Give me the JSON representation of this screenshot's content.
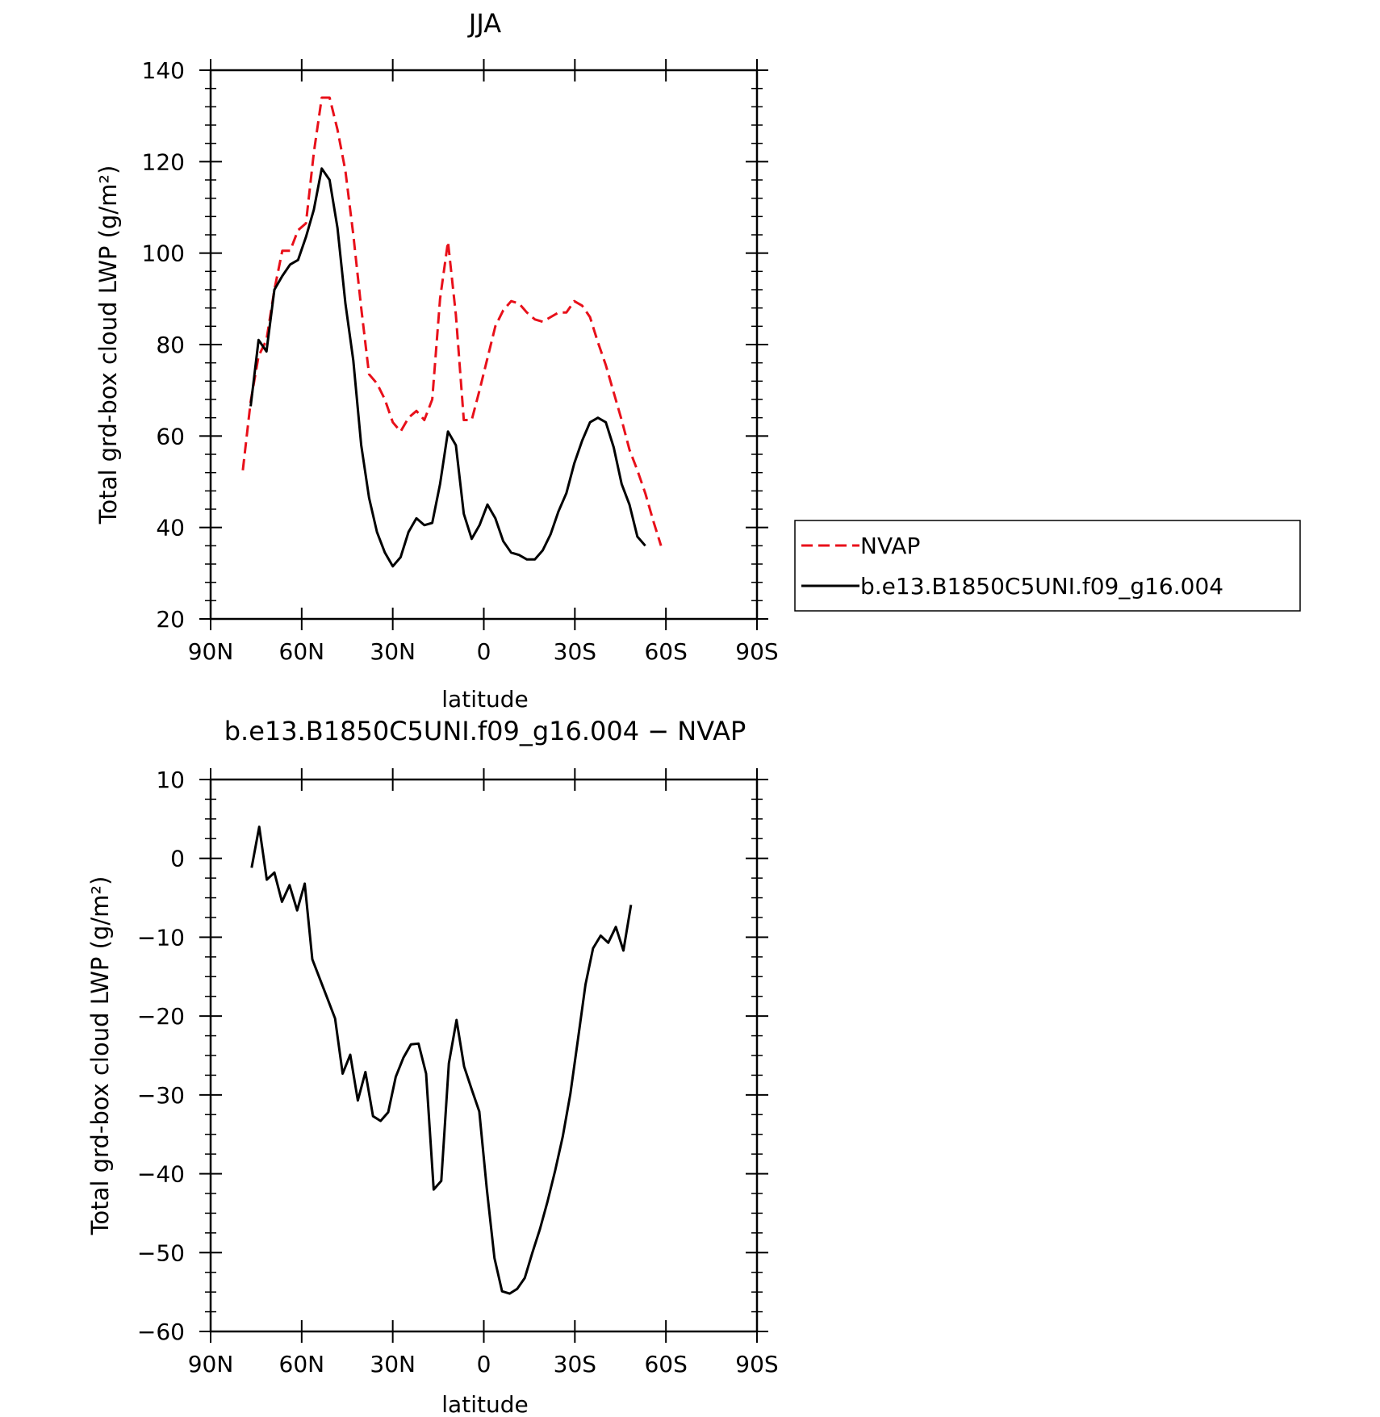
{
  "chart_data": [
    {
      "type": "line",
      "title": "JJA",
      "xlabel": "latitude",
      "ylabel": "Total grd-box cloud LWP (g/m²)",
      "xlim": [
        -90,
        90
      ],
      "ylim": [
        20,
        140
      ],
      "x_ticks": [
        -90,
        -60,
        -30,
        0,
        30,
        60,
        90
      ],
      "x_tick_labels": [
        "90N",
        "60N",
        "30N",
        "0",
        "30S",
        "60S",
        "90S"
      ],
      "y_ticks": [
        20,
        40,
        60,
        80,
        100,
        120,
        140
      ],
      "y_tick_labels": [
        "20",
        "40",
        "60",
        "80",
        "100",
        "120",
        "140"
      ],
      "grid": false,
      "legend_position": "right",
      "series": [
        {
          "name": "NVAP",
          "color": "#e8101a",
          "dash": "dashed",
          "x": [
            -79.4,
            -76.8,
            -74.2,
            -71.6,
            -69.0,
            -66.4,
            -63.8,
            -61.2,
            -58.6,
            -56.0,
            -53.4,
            -50.8,
            -48.2,
            -45.6,
            -43.0,
            -40.4,
            -37.8,
            -35.2,
            -32.6,
            -30.0,
            -27.4,
            -24.8,
            -22.2,
            -19.6,
            -17.0,
            -14.4,
            -11.8,
            -9.2,
            -6.6,
            -4.0,
            -1.4,
            1.2,
            3.8,
            6.4,
            9.0,
            11.6,
            14.2,
            16.8,
            19.4,
            22.0,
            24.6,
            27.2,
            29.8,
            32.4,
            35.0,
            37.6,
            40.2,
            42.8,
            45.4,
            48.0,
            50.6,
            53.2,
            55.8,
            58.4,
            61.0,
            63.6,
            66.2
          ],
          "values": [
            52.5,
            67.5,
            77.5,
            81.0,
            92.0,
            100.5,
            100.5,
            105.0,
            106.5,
            122.0,
            134.0,
            134.0,
            127.0,
            118.0,
            104.0,
            88.0,
            73.5,
            71.5,
            68.0,
            63.0,
            61.0,
            64.0,
            65.5,
            63.5,
            68.0,
            90.0,
            102.5,
            86.5,
            63.5,
            63.5,
            70.0,
            77.0,
            84.0,
            87.5,
            89.5,
            89.0,
            87.0,
            85.5,
            85.0,
            86.0,
            87.0,
            87.0,
            89.5,
            88.5,
            86.0,
            80.5,
            75.5,
            69.5,
            63.5,
            57.0,
            52.5,
            47.5,
            41.5,
            36.0,
            null,
            null,
            null
          ]
        },
        {
          "name": "b.e13.B1850C5UNI.f09_g16.004",
          "color": "#000000",
          "dash": "solid",
          "x": [
            -76.8,
            -74.2,
            -71.6,
            -69.0,
            -66.4,
            -63.8,
            -61.2,
            -58.6,
            -56.0,
            -53.4,
            -50.8,
            -48.2,
            -45.6,
            -43.0,
            -40.4,
            -37.8,
            -35.2,
            -32.6,
            -30.0,
            -27.4,
            -24.8,
            -22.2,
            -19.6,
            -17.0,
            -14.4,
            -11.8,
            -9.2,
            -6.6,
            -4.0,
            -1.4,
            1.2,
            3.8,
            6.4,
            9.0,
            11.6,
            14.2,
            16.8,
            19.4,
            22.0,
            24.6,
            27.2,
            29.8,
            32.4,
            35.0,
            37.6,
            40.2,
            42.8,
            45.4,
            48.0,
            50.6,
            53.2,
            55.8,
            58.4,
            61.0,
            63.6
          ],
          "values": [
            66.5,
            81.0,
            78.5,
            92.0,
            95.0,
            97.5,
            98.5,
            103.5,
            109.5,
            118.5,
            116.0,
            105.5,
            89.0,
            76.5,
            58.0,
            46.5,
            39.0,
            34.5,
            31.5,
            33.5,
            39.0,
            42.0,
            40.5,
            41.0,
            49.5,
            61.0,
            58.0,
            43.0,
            37.5,
            40.5,
            45.0,
            42.0,
            37.0,
            34.5,
            34.0,
            33.0,
            33.0,
            35.0,
            38.5,
            43.5,
            47.5,
            54.0,
            59.0,
            63.0,
            64.0,
            63.0,
            57.5,
            49.5,
            45.0,
            38.0,
            36.0,
            null,
            null,
            null,
            null
          ]
        }
      ]
    },
    {
      "type": "line",
      "title": "b.e13.B1850C5UNI.f09_g16.004 − NVAP",
      "xlabel": "latitude",
      "ylabel": "Total grd-box cloud LWP (g/m²)",
      "xlim": [
        -90,
        90
      ],
      "ylim": [
        -60,
        10
      ],
      "x_ticks": [
        -90,
        -60,
        -30,
        0,
        30,
        60,
        90
      ],
      "x_tick_labels": [
        "90N",
        "60N",
        "30N",
        "0",
        "30S",
        "60S",
        "90S"
      ],
      "y_ticks": [
        -60,
        -50,
        -40,
        -30,
        -20,
        -10,
        0,
        10
      ],
      "y_tick_labels": [
        "−60",
        "−50",
        "−40",
        "−30",
        "−20",
        "−10",
        "0",
        "10"
      ],
      "grid": false,
      "series": [
        {
          "color": "#000000",
          "dash": "solid",
          "x": [
            -76.5,
            -74.0,
            -71.5,
            -69.0,
            -66.5,
            -64.0,
            -61.5,
            -59.0,
            -56.5,
            -54.0,
            -51.5,
            -49.0,
            -46.5,
            -44.0,
            -41.5,
            -39.0,
            -36.5,
            -34.0,
            -31.5,
            -29.0,
            -26.5,
            -24.0,
            -21.5,
            -19.0,
            -16.5,
            -14.0,
            -11.5,
            -9.0,
            -6.5,
            -4.0,
            -1.5,
            1.0,
            3.5,
            6.0,
            8.5,
            11.0,
            13.5,
            16.0,
            18.5,
            21.0,
            23.5,
            26.0,
            28.5,
            31.0,
            33.5,
            36.0,
            38.5,
            41.0,
            43.5,
            46.0,
            48.5,
            51.0,
            53.5,
            56.0,
            58.5,
            61.0,
            63.5
          ],
          "values": [
            -1.2,
            4.0,
            -2.7,
            -1.8,
            -5.5,
            -3.4,
            -6.6,
            -3.2,
            -12.8,
            -15.3,
            -17.8,
            -20.3,
            -27.3,
            -24.9,
            -30.7,
            -27.1,
            -32.7,
            -33.3,
            -32.2,
            -27.7,
            -25.3,
            -23.6,
            -23.5,
            -27.3,
            -42.0,
            -40.9,
            -26.0,
            -20.5,
            -26.4,
            -29.3,
            -32.1,
            -42.0,
            -50.7,
            -54.9,
            -55.2,
            -54.6,
            -53.2,
            -50.0,
            -47.0,
            -43.5,
            -39.6,
            -35.3,
            -29.9,
            -23.0,
            -16.0,
            -11.4,
            -9.8,
            -10.7,
            -8.7,
            -11.7,
            -5.9,
            null,
            null,
            null,
            null,
            null,
            null
          ]
        }
      ]
    }
  ],
  "colors": {
    "nvap": "#e8101a",
    "model": "#000000",
    "axis": "#000000"
  }
}
